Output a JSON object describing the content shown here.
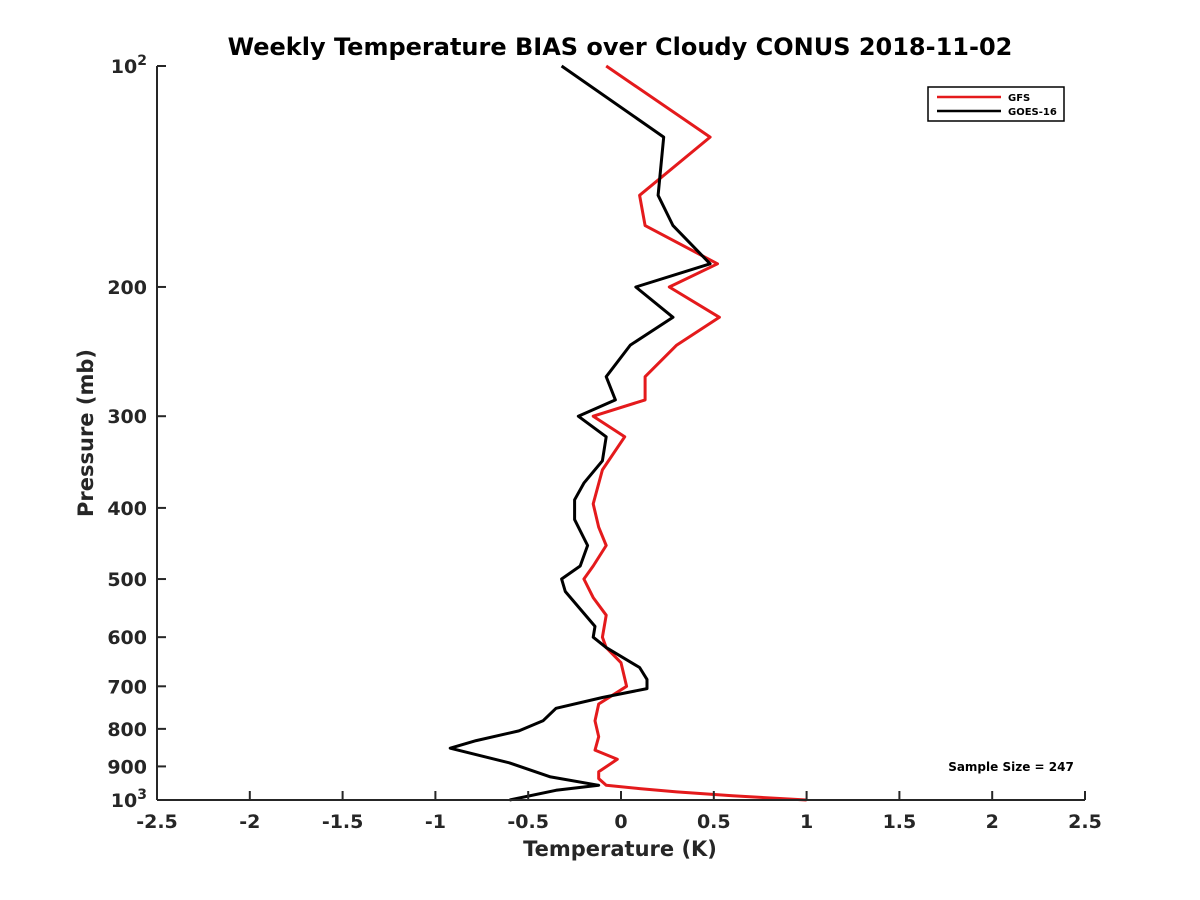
{
  "chart_data": {
    "type": "line",
    "title": "Weekly Temperature BIAS over Cloudy CONUS 2018-11-02",
    "xlabel": "Temperature (K)",
    "ylabel": "Pressure (mb)",
    "xlim": [
      -2.5,
      2.5
    ],
    "ylim": [
      100,
      1000
    ],
    "yscale": "log",
    "y_reversed": true,
    "x_ticks": [
      -2.5,
      -2,
      -1.5,
      -1,
      -0.5,
      0,
      0.5,
      1,
      1.5,
      2,
      2.5
    ],
    "x_tick_labels": [
      "-2.5",
      "-2",
      "-1.5",
      "-1",
      "-0.5",
      "0",
      "0.5",
      "1",
      "1.5",
      "2",
      "2.5"
    ],
    "y_ticks": [
      100,
      200,
      300,
      400,
      500,
      600,
      700,
      800,
      900,
      1000
    ],
    "y_tick_labels": [
      {
        "base": "10",
        "exp": "2"
      },
      {
        "base": "200"
      },
      {
        "base": "300"
      },
      {
        "base": "400"
      },
      {
        "base": "500"
      },
      {
        "base": "600"
      },
      {
        "base": "700"
      },
      {
        "base": "800"
      },
      {
        "base": "900"
      },
      {
        "base": "10",
        "exp": "3"
      }
    ],
    "grid": false,
    "legend_position": "top-right",
    "annotation": "Sample Size = 247",
    "series": [
      {
        "name": "GFS",
        "color": "#e41a1c",
        "points": [
          {
            "x": -0.08,
            "p": 100
          },
          {
            "x": 0.48,
            "p": 125
          },
          {
            "x": 0.1,
            "p": 150
          },
          {
            "x": 0.13,
            "p": 165
          },
          {
            "x": 0.52,
            "p": 186
          },
          {
            "x": 0.26,
            "p": 200
          },
          {
            "x": 0.53,
            "p": 220
          },
          {
            "x": 0.3,
            "p": 240
          },
          {
            "x": 0.13,
            "p": 265
          },
          {
            "x": 0.13,
            "p": 285
          },
          {
            "x": -0.15,
            "p": 300
          },
          {
            "x": 0.02,
            "p": 320
          },
          {
            "x": -0.1,
            "p": 355
          },
          {
            "x": -0.15,
            "p": 395
          },
          {
            "x": -0.12,
            "p": 425
          },
          {
            "x": -0.08,
            "p": 450
          },
          {
            "x": -0.15,
            "p": 480
          },
          {
            "x": -0.2,
            "p": 500
          },
          {
            "x": -0.15,
            "p": 530
          },
          {
            "x": -0.08,
            "p": 560
          },
          {
            "x": -0.1,
            "p": 600
          },
          {
            "x": -0.08,
            "p": 620
          },
          {
            "x": 0.0,
            "p": 650
          },
          {
            "x": 0.03,
            "p": 700
          },
          {
            "x": -0.12,
            "p": 740
          },
          {
            "x": -0.14,
            "p": 780
          },
          {
            "x": -0.12,
            "p": 820
          },
          {
            "x": -0.14,
            "p": 855
          },
          {
            "x": -0.02,
            "p": 880
          },
          {
            "x": -0.12,
            "p": 915
          },
          {
            "x": -0.12,
            "p": 935
          },
          {
            "x": -0.08,
            "p": 955
          },
          {
            "x": 0.1,
            "p": 965
          },
          {
            "x": 0.3,
            "p": 975
          },
          {
            "x": 0.6,
            "p": 987
          },
          {
            "x": 1.0,
            "p": 1000
          }
        ]
      },
      {
        "name": "GOES-16",
        "color": "#000000",
        "points": [
          {
            "x": -0.32,
            "p": 100
          },
          {
            "x": 0.23,
            "p": 125
          },
          {
            "x": 0.2,
            "p": 150
          },
          {
            "x": 0.28,
            "p": 165
          },
          {
            "x": 0.48,
            "p": 186
          },
          {
            "x": 0.08,
            "p": 200
          },
          {
            "x": 0.28,
            "p": 220
          },
          {
            "x": 0.05,
            "p": 240
          },
          {
            "x": -0.08,
            "p": 265
          },
          {
            "x": -0.03,
            "p": 285
          },
          {
            "x": -0.23,
            "p": 300
          },
          {
            "x": -0.08,
            "p": 320
          },
          {
            "x": -0.1,
            "p": 345
          },
          {
            "x": -0.2,
            "p": 370
          },
          {
            "x": -0.25,
            "p": 390
          },
          {
            "x": -0.25,
            "p": 415
          },
          {
            "x": -0.18,
            "p": 450
          },
          {
            "x": -0.22,
            "p": 480
          },
          {
            "x": -0.32,
            "p": 500
          },
          {
            "x": -0.3,
            "p": 520
          },
          {
            "x": -0.14,
            "p": 580
          },
          {
            "x": -0.15,
            "p": 600
          },
          {
            "x": -0.08,
            "p": 620
          },
          {
            "x": 0.1,
            "p": 660
          },
          {
            "x": 0.14,
            "p": 685
          },
          {
            "x": 0.14,
            "p": 705
          },
          {
            "x": -0.1,
            "p": 725
          },
          {
            "x": -0.35,
            "p": 750
          },
          {
            "x": -0.42,
            "p": 780
          },
          {
            "x": -0.55,
            "p": 805
          },
          {
            "x": -0.78,
            "p": 830
          },
          {
            "x": -0.92,
            "p": 850
          },
          {
            "x": -0.6,
            "p": 890
          },
          {
            "x": -0.38,
            "p": 930
          },
          {
            "x": -0.12,
            "p": 955
          },
          {
            "x": -0.35,
            "p": 970
          },
          {
            "x": -0.6,
            "p": 1000
          }
        ]
      }
    ]
  }
}
